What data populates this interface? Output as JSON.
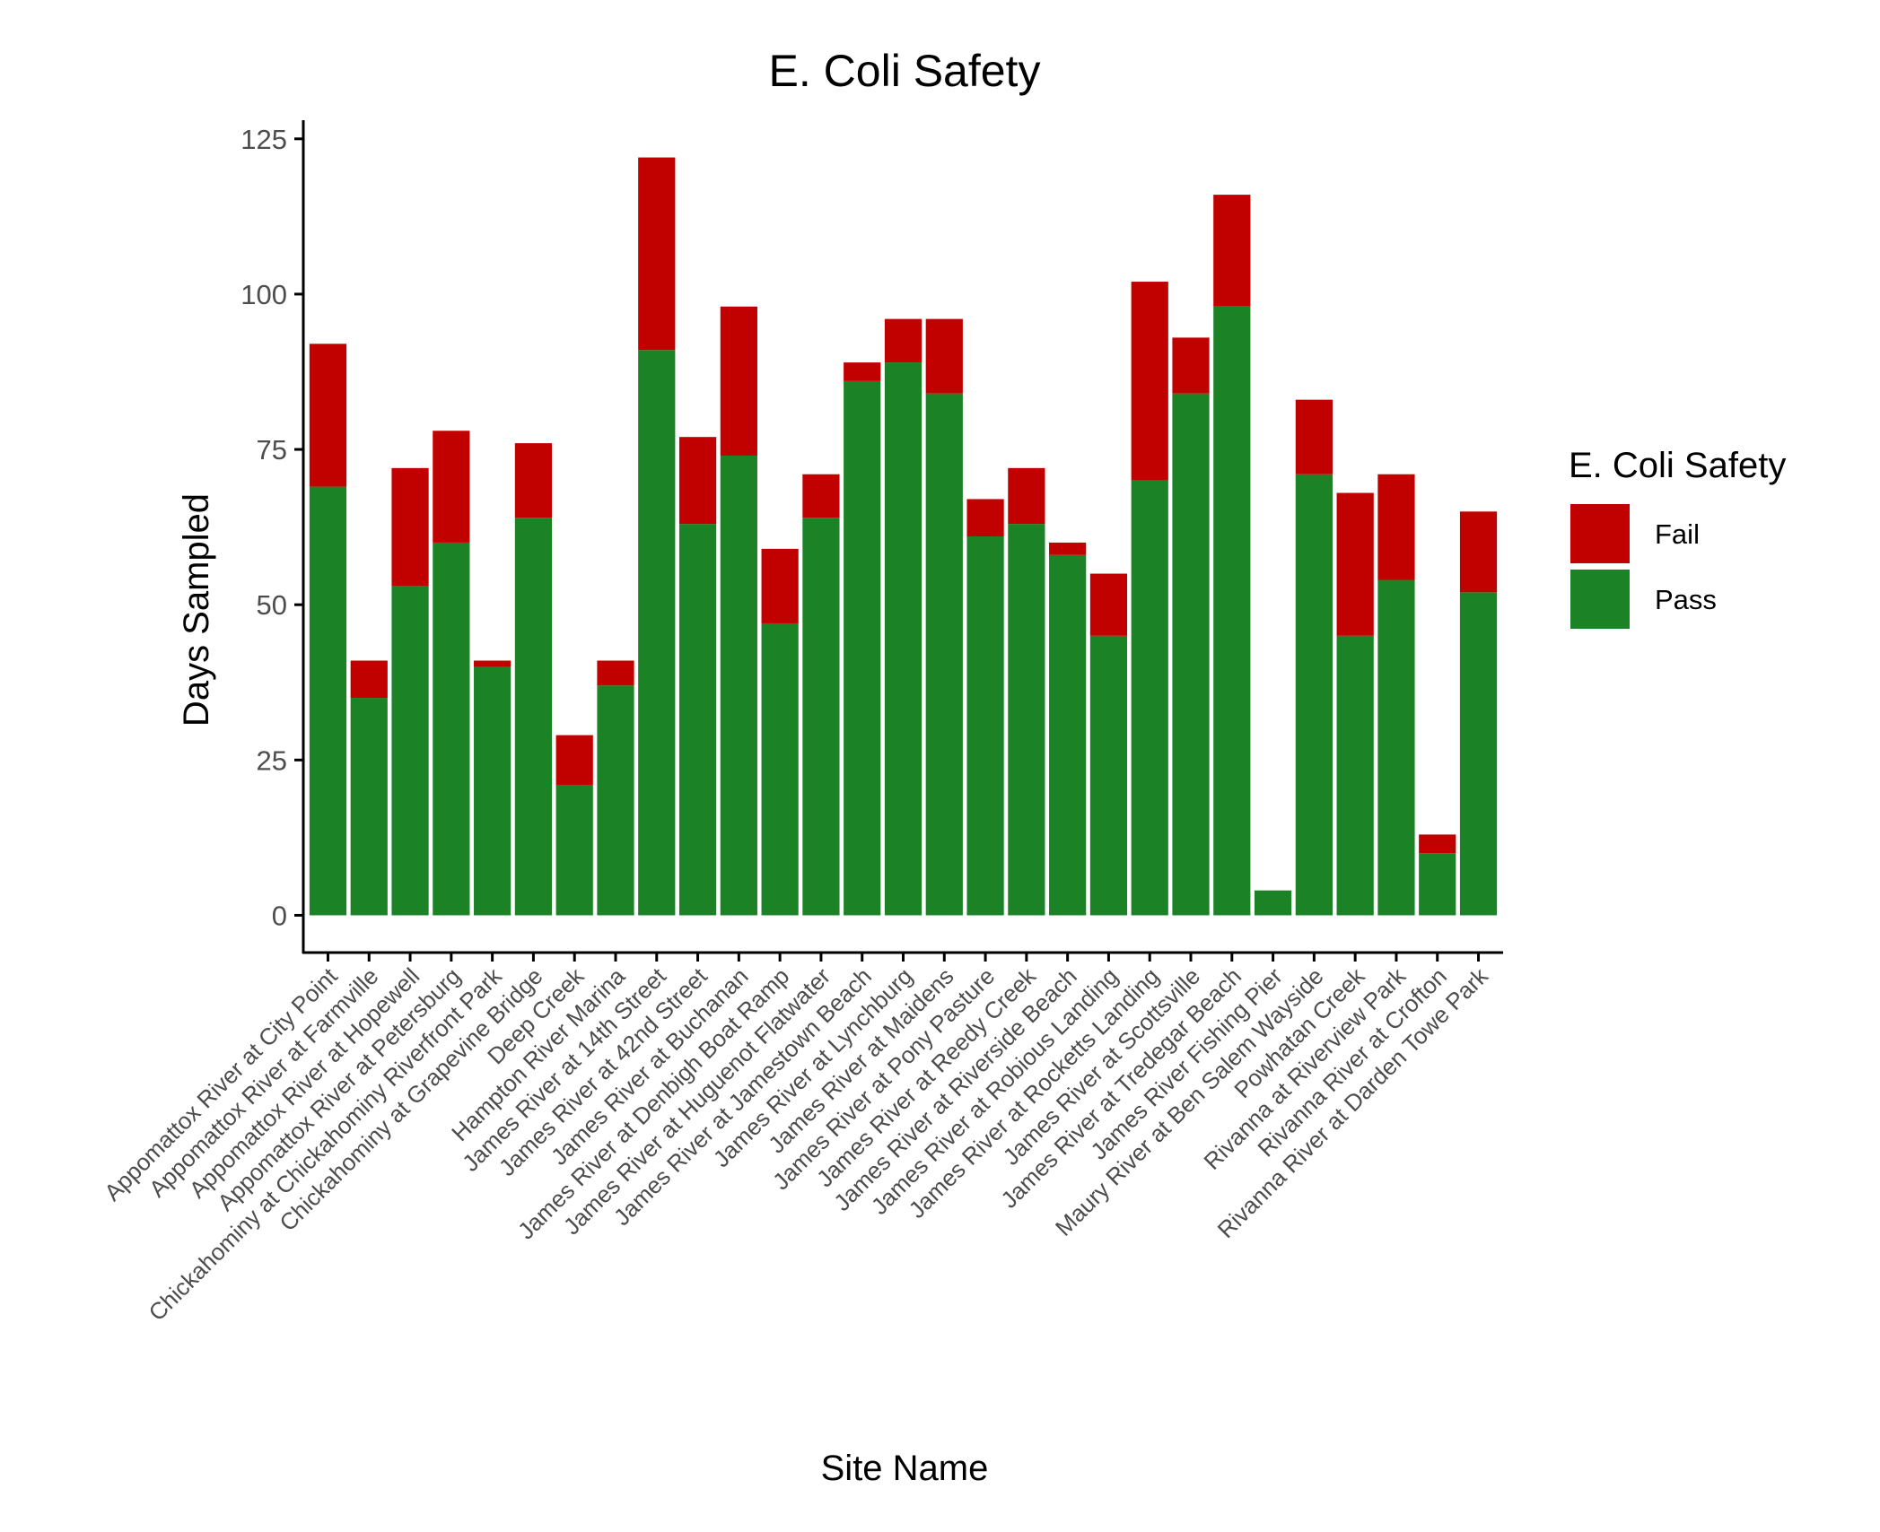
{
  "colors": {
    "pass": "#1b8226",
    "fail": "#c10000",
    "axis": "#000000",
    "tick_label": "#4d4d4d"
  },
  "chart_data": {
    "type": "bar",
    "stacked": true,
    "title": "E. Coli Safety",
    "xlabel": "Site Name",
    "ylabel": "Days Sampled",
    "ylim": [
      -6,
      128
    ],
    "yticks": [
      0,
      25,
      50,
      75,
      100,
      125
    ],
    "grid": false,
    "legend": {
      "title": "E. Coli Safety",
      "placement": "right",
      "entries": [
        "Fail",
        "Pass"
      ]
    },
    "categories": [
      "Appomattox River at City Point",
      "Appomattox River at Farmville",
      "Appomattox River at Hopewell",
      "Appomattox River at Petersburg",
      "Chickahominy at Chickahominy Riverfront Park",
      "Chickahominy at Grapevine Bridge",
      "Deep Creek",
      "Hampton River Marina",
      "James River at 14th Street",
      "James River at 42nd Street",
      "James River at Buchanan",
      "James River at Denbigh Boat Ramp",
      "James River at Huguenot Flatwater",
      "James River at Jamestown Beach",
      "James River at Lynchburg",
      "James River at Maidens",
      "James River at Pony Pasture",
      "James River at Reedy Creek",
      "James River at Riverside Beach",
      "James River at Robious Landing",
      "James River at Rocketts Landing",
      "James River at Scottsville",
      "James River at Tredegar Beach",
      "James River Fishing Pier",
      "Maury River at Ben Salem Wayside",
      "Powhatan Creek",
      "Rivanna at Riverview Park",
      "Rivanna River at Crofton",
      "Rivanna River at Darden Towe Park"
    ],
    "series": [
      {
        "name": "Pass",
        "values": [
          69,
          35,
          53,
          60,
          40,
          64,
          21,
          37,
          91,
          63,
          74,
          47,
          64,
          86,
          89,
          84,
          61,
          63,
          58,
          45,
          70,
          84,
          98,
          4,
          71,
          45,
          54,
          10,
          52
        ]
      },
      {
        "name": "Fail",
        "values": [
          23,
          6,
          19,
          18,
          1,
          12,
          8,
          4,
          31,
          14,
          24,
          12,
          7,
          3,
          7,
          12,
          6,
          9,
          2,
          10,
          32,
          9,
          18,
          0,
          12,
          23,
          17,
          3,
          13
        ]
      }
    ]
  }
}
